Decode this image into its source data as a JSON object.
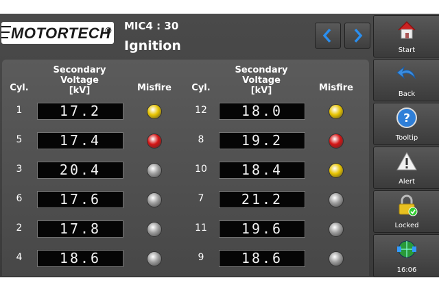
{
  "header": {
    "logo": "MOTORTECH",
    "logo_mark": "®",
    "device": "MIC4 : 30",
    "title": "Ignition"
  },
  "table": {
    "columns": [
      "Cyl.",
      [
        "Secondary",
        "Voltage",
        "[kV]"
      ],
      "Misfire"
    ],
    "groups": [
      {
        "rows": [
          {
            "cyl": 1,
            "voltage": "17.2",
            "led": "#e6c300"
          },
          {
            "cyl": 5,
            "voltage": "17.4",
            "led": "#d41414"
          },
          {
            "cyl": 3,
            "voltage": "20.4",
            "led": "#9c9c9c"
          },
          {
            "cyl": 6,
            "voltage": "17.6",
            "led": "#9c9c9c"
          },
          {
            "cyl": 2,
            "voltage": "17.8",
            "led": "#9c9c9c"
          },
          {
            "cyl": 4,
            "voltage": "18.6",
            "led": "#9c9c9c"
          }
        ]
      },
      {
        "rows": [
          {
            "cyl": 12,
            "voltage": "18.0",
            "led": "#e6c300"
          },
          {
            "cyl": 8,
            "voltage": "19.2",
            "led": "#d41414"
          },
          {
            "cyl": 10,
            "voltage": "18.4",
            "led": "#e6c300"
          },
          {
            "cyl": 7,
            "voltage": "21.2",
            "led": "#9c9c9c"
          },
          {
            "cyl": 11,
            "voltage": "19.6",
            "led": "#9c9c9c"
          },
          {
            "cyl": 9,
            "voltage": "18.6",
            "led": "#9c9c9c"
          }
        ]
      }
    ]
  },
  "sidebar": [
    "Start",
    "Back",
    "Tooltip",
    "Alert",
    "Locked",
    "16:06"
  ]
}
